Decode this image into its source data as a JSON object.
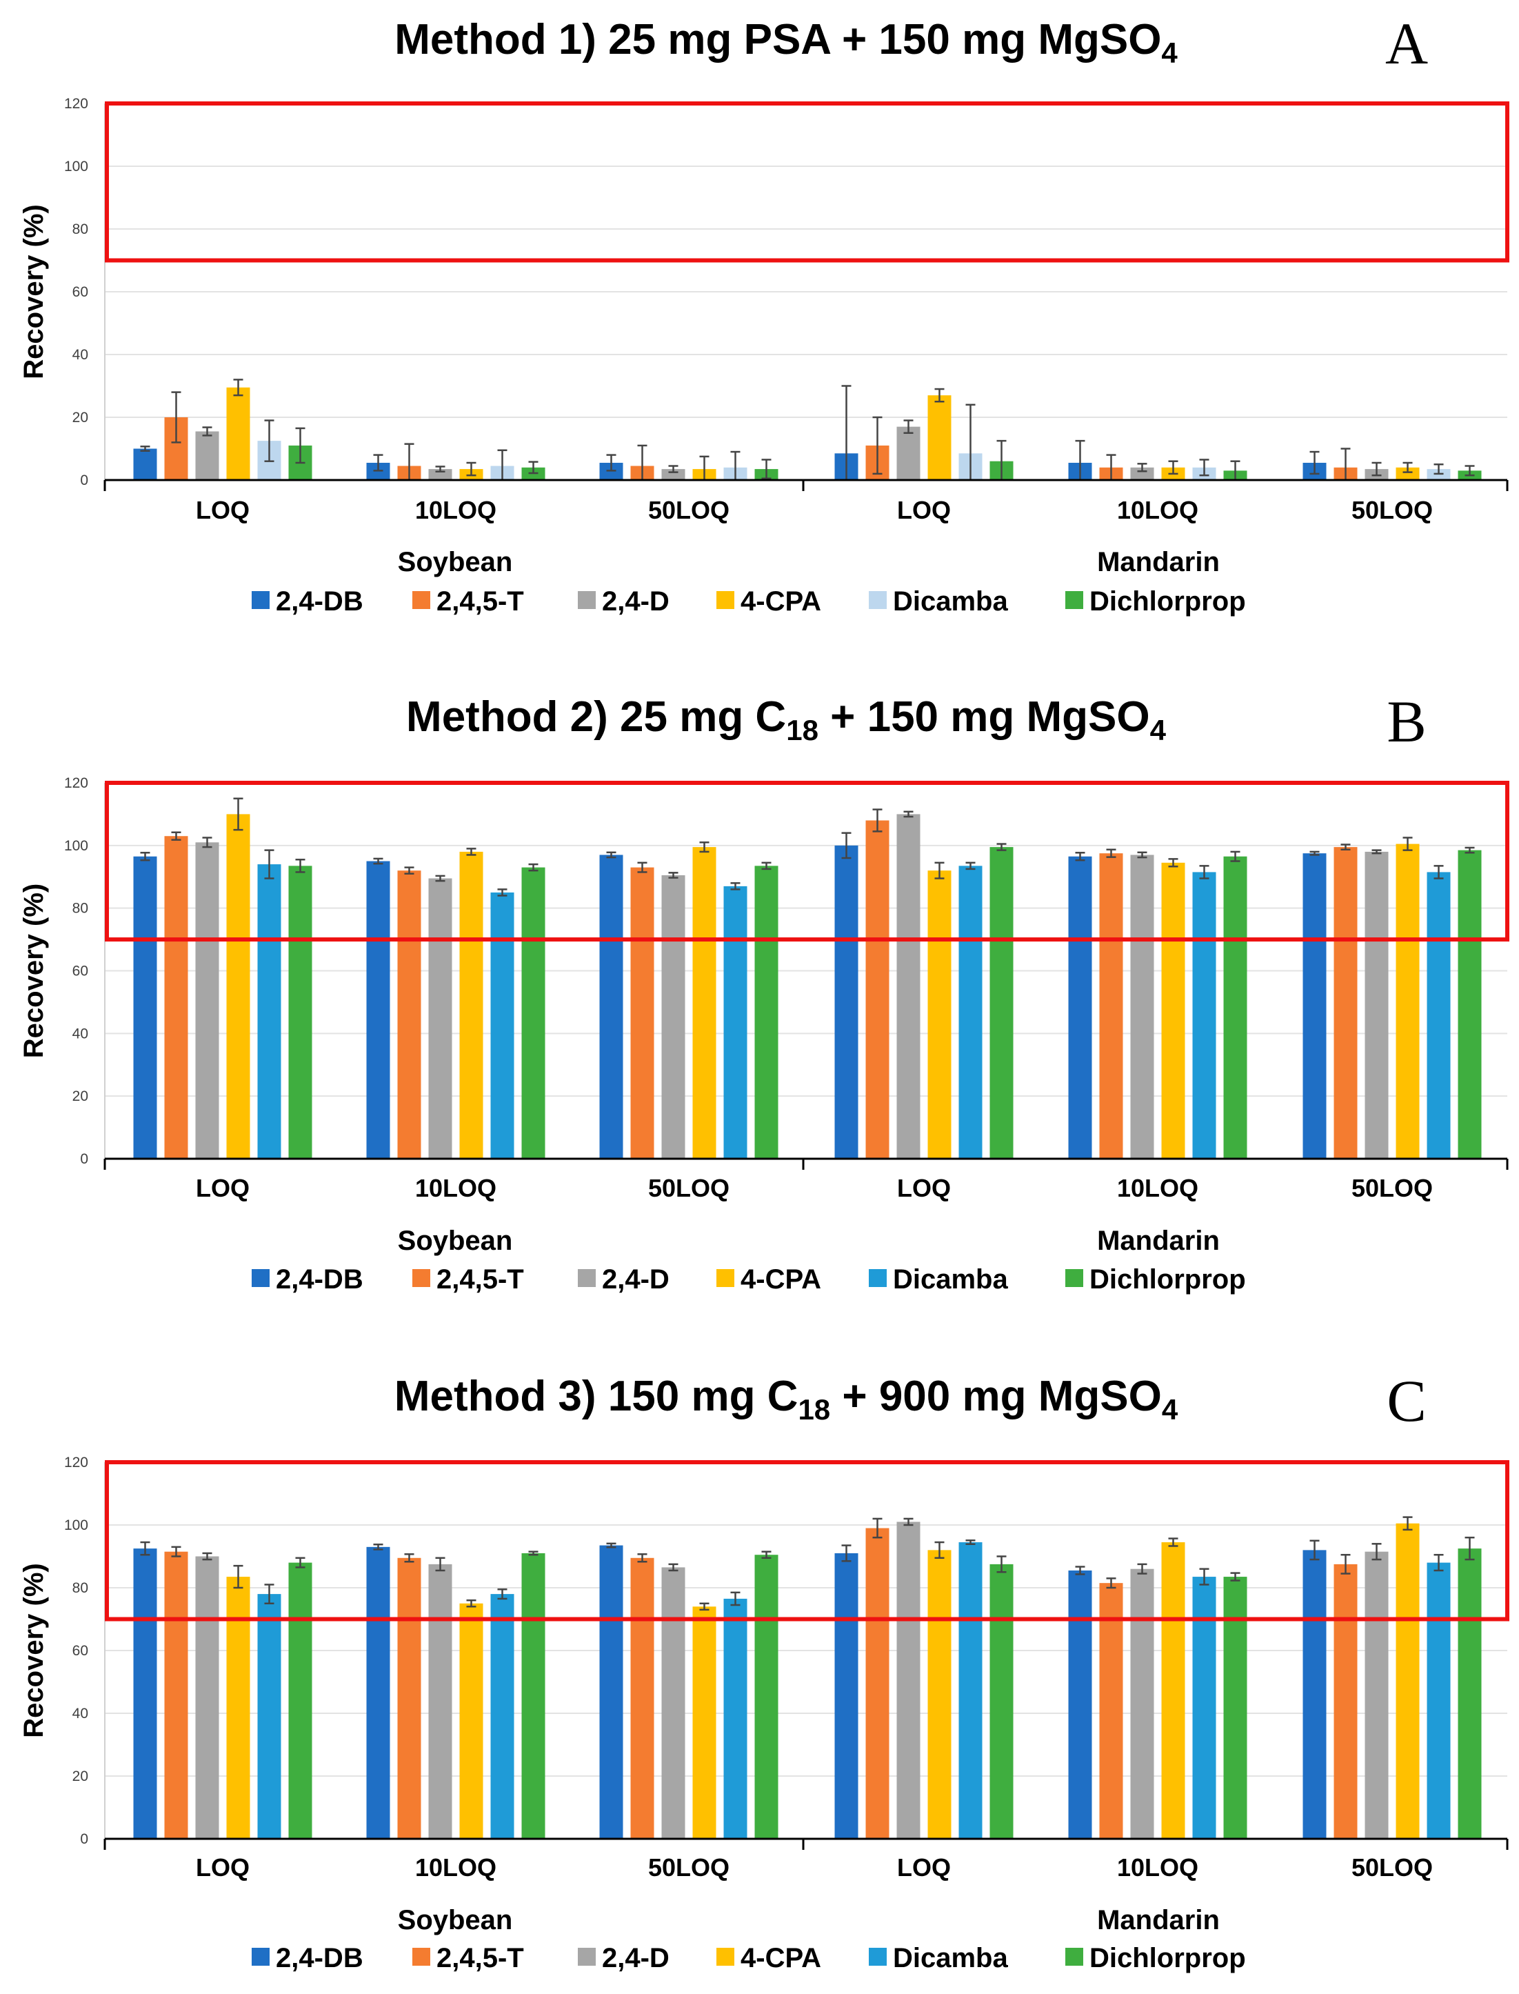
{
  "chart_data": [
    {
      "type": "bar",
      "panel": "A",
      "title": {
        "main": "Method 1) 25 mg PSA + 150 mg MgSO",
        "sub": "4"
      },
      "ylabel": "Recovery (%)",
      "ylim": [
        0,
        120
      ],
      "yticks": [
        0,
        20,
        40,
        60,
        80,
        100,
        120
      ],
      "acceptance_range": [
        70,
        120
      ],
      "groups": [
        "Soybean",
        "Mandarin"
      ],
      "categories": [
        "LOQ",
        "10LOQ",
        "50LOQ",
        "LOQ",
        "10LOQ",
        "50LOQ"
      ],
      "series": [
        {
          "name": "2,4-DB",
          "color": "#1f6fc5",
          "values": [
            10,
            5.5,
            5.5,
            8.5,
            5.5,
            5.5
          ],
          "errors": [
            0.7,
            2.5,
            2.5,
            21.5,
            7,
            3.5
          ]
        },
        {
          "name": "2,4,5-T",
          "color": "#f47c30",
          "values": [
            20,
            4.5,
            4.5,
            11,
            4,
            4
          ],
          "errors": [
            8,
            7,
            6.5,
            9,
            4,
            6
          ]
        },
        {
          "name": "2,4-D",
          "color": "#a6a6a6",
          "values": [
            15.5,
            3.5,
            3.5,
            17,
            4,
            3.5
          ],
          "errors": [
            1.3,
            0.8,
            1,
            2,
            1.2,
            2
          ]
        },
        {
          "name": "4-CPA",
          "color": "#ffc000",
          "values": [
            29.5,
            3.5,
            3.5,
            27,
            4,
            4
          ],
          "errors": [
            2.5,
            2,
            4,
            2,
            2,
            1.5
          ]
        },
        {
          "name": "Dicamba",
          "color": "#bdd7ee",
          "values": [
            12.5,
            4.5,
            4,
            8.5,
            4,
            3.5
          ],
          "errors": [
            6.5,
            5,
            5,
            15.5,
            2.5,
            1.5
          ]
        },
        {
          "name": "Dichlorprop",
          "color": "#3fae3f",
          "values": [
            11,
            4,
            3.5,
            6,
            3,
            3
          ],
          "errors": [
            5.5,
            1.8,
            3,
            6.5,
            3,
            1.5
          ]
        }
      ]
    },
    {
      "type": "bar",
      "panel": "B",
      "title": {
        "pre": "Method 2) 25 mg C",
        "sub1": "18",
        "mid": " + 150 mg MgSO",
        "sub2": "4"
      },
      "ylabel": "Recovery (%)",
      "ylim": [
        0,
        120
      ],
      "yticks": [
        0,
        20,
        40,
        60,
        80,
        100,
        120
      ],
      "acceptance_range": [
        70,
        120
      ],
      "groups": [
        "Soybean",
        "Mandarin"
      ],
      "categories": [
        "LOQ",
        "10LOQ",
        "50LOQ",
        "LOQ",
        "10LOQ",
        "50LOQ"
      ],
      "series": [
        {
          "name": "2,4-DB",
          "color": "#1f6fc5",
          "values": [
            96.5,
            95,
            97,
            100,
            96.5,
            97.5
          ],
          "errors": [
            1.2,
            0.8,
            0.8,
            4,
            1.2,
            0.5
          ]
        },
        {
          "name": "2,4,5-T",
          "color": "#f47c30",
          "values": [
            103,
            92,
            93,
            108,
            97.5,
            99.5
          ],
          "errors": [
            1.2,
            1,
            1.5,
            3.5,
            1.2,
            0.8
          ]
        },
        {
          "name": "2,4-D",
          "color": "#a6a6a6",
          "values": [
            101,
            89.5,
            90.5,
            110,
            97,
            98
          ],
          "errors": [
            1.5,
            0.8,
            0.8,
            0.8,
            0.8,
            0.5
          ]
        },
        {
          "name": "4-CPA",
          "color": "#ffc000",
          "values": [
            110,
            98,
            99.5,
            92,
            94.5,
            100.5
          ],
          "errors": [
            5,
            1,
            1.5,
            2.5,
            1.2,
            2
          ]
        },
        {
          "name": "Dicamba",
          "color": "#1f9bd7",
          "values": [
            94,
            85,
            87,
            93.5,
            91.5,
            91.5
          ],
          "errors": [
            4.5,
            1,
            1,
            1,
            2,
            2
          ]
        },
        {
          "name": "Dichlorprop",
          "color": "#3fae3f",
          "values": [
            93.5,
            93,
            93.5,
            99.5,
            96.5,
            98.5
          ],
          "errors": [
            2,
            1,
            1,
            1,
            1.5,
            0.8
          ]
        }
      ]
    },
    {
      "type": "bar",
      "panel": "C",
      "title": {
        "pre": "Method 3) 150 mg C",
        "sub1": "18",
        "mid": " + 900 mg MgSO",
        "sub2": "4"
      },
      "ylabel": "Recovery (%)",
      "ylim": [
        0,
        120
      ],
      "yticks": [
        0,
        20,
        40,
        60,
        80,
        100,
        120
      ],
      "acceptance_range": [
        70,
        120
      ],
      "groups": [
        "Soybean",
        "Mandarin"
      ],
      "categories": [
        "LOQ",
        "10LOQ",
        "50LOQ",
        "LOQ",
        "10LOQ",
        "50LOQ"
      ],
      "series": [
        {
          "name": "2,4-DB",
          "color": "#1f6fc5",
          "values": [
            92.5,
            93,
            93.5,
            91,
            85.5,
            92
          ],
          "errors": [
            2,
            0.8,
            0.6,
            2.5,
            1.2,
            3
          ]
        },
        {
          "name": "2,4,5-T",
          "color": "#f47c30",
          "values": [
            91.5,
            89.5,
            89.5,
            99,
            81.5,
            87.5
          ],
          "errors": [
            1.5,
            1.2,
            1.2,
            3,
            1.5,
            3
          ]
        },
        {
          "name": "2,4-D",
          "color": "#a6a6a6",
          "values": [
            90,
            87.5,
            86.5,
            101,
            86,
            91.5
          ],
          "errors": [
            1,
            2,
            1,
            1,
            1.5,
            2.5
          ]
        },
        {
          "name": "4-CPA",
          "color": "#ffc000",
          "values": [
            83.5,
            75,
            74,
            92,
            94.5,
            100.5
          ],
          "errors": [
            3.5,
            1,
            1,
            2.5,
            1.2,
            2
          ]
        },
        {
          "name": "Dicamba",
          "color": "#1f9bd7",
          "values": [
            78,
            78,
            76.5,
            94.5,
            83.5,
            88
          ],
          "errors": [
            3,
            1.5,
            2,
            0.6,
            2.5,
            2.5
          ]
        },
        {
          "name": "Dichlorprop",
          "color": "#3fae3f",
          "values": [
            88,
            91,
            90.5,
            87.5,
            83.5,
            92.5
          ],
          "errors": [
            1.5,
            0.5,
            1,
            2.5,
            1.2,
            3.5
          ]
        }
      ]
    }
  ]
}
